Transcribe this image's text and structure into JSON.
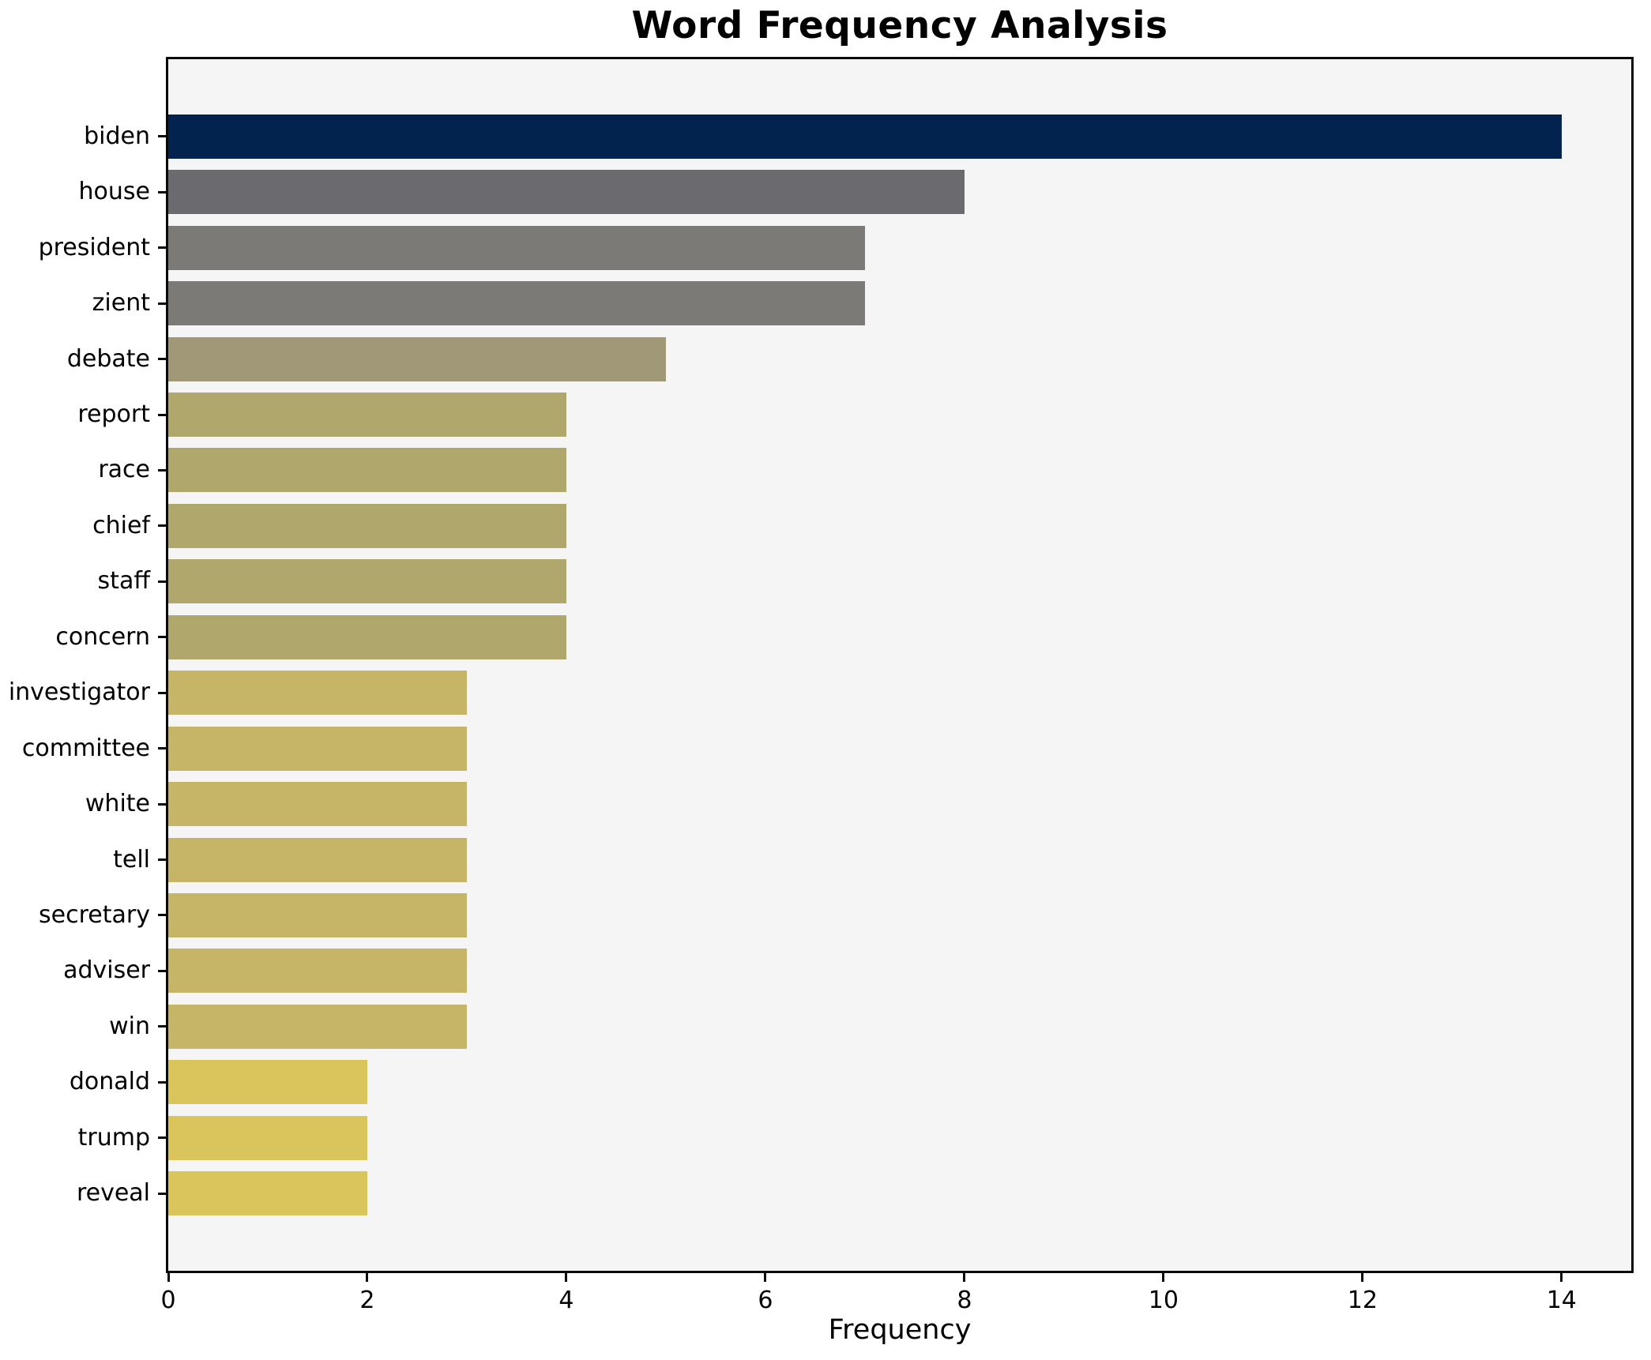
{
  "chart_data": {
    "type": "bar",
    "orientation": "horizontal",
    "title": "Word Frequency Analysis",
    "xlabel": "Frequency",
    "ylabel": "",
    "categories": [
      "biden",
      "house",
      "president",
      "zient",
      "debate",
      "report",
      "race",
      "chief",
      "staff",
      "concern",
      "investigator",
      "committee",
      "white",
      "tell",
      "secretary",
      "adviser",
      "win",
      "donald",
      "trump",
      "reveal"
    ],
    "values": [
      14,
      8,
      7,
      7,
      5,
      4,
      4,
      4,
      4,
      4,
      3,
      3,
      3,
      3,
      3,
      3,
      3,
      2,
      2,
      2
    ],
    "bar_colors": [
      "#02234d",
      "#6b6b6f",
      "#7b7a76",
      "#7b7a76",
      "#a19877",
      "#b0a76c",
      "#b0a76c",
      "#b0a76c",
      "#b0a76c",
      "#b0a76c",
      "#c6b566",
      "#c6b566",
      "#c6b566",
      "#c6b566",
      "#c6b566",
      "#c6b566",
      "#c6b566",
      "#dac55c",
      "#dac55c",
      "#dac55c"
    ],
    "x_ticks": [
      0,
      2,
      4,
      6,
      8,
      10,
      12,
      14
    ],
    "xlim": [
      0,
      14.7
    ],
    "grid": false,
    "legend": null,
    "bar_value_labels_shown": false,
    "colors": {
      "plot_background": "#f5f5f6",
      "figure_background": "#ffffff",
      "spine": "#0a0a0a",
      "text": "#000000"
    }
  }
}
